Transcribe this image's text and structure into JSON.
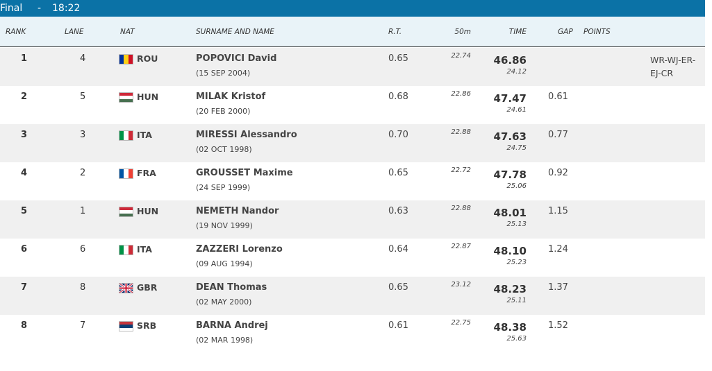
{
  "header": {
    "title": "Final",
    "separator": "-",
    "time": "18:22"
  },
  "columns": {
    "rank": "RANK",
    "lane": "LANE",
    "nat": "NAT",
    "name": "SURNAME AND NAME",
    "rt": "R.T.",
    "split": "50m",
    "time": "TIME",
    "gap": "GAP",
    "points": "POINTS"
  },
  "rows": [
    {
      "rank": 1,
      "lane": 4,
      "nat": "ROU",
      "name": "POPOVICI David",
      "dob": "(15 SEP 2004)",
      "rt": "0.65",
      "split": "22.74",
      "time": "46.86",
      "second": "24.12",
      "record": "WR-WJ-ER-EJ-CR"
    },
    {
      "rank": 2,
      "lane": 5,
      "nat": "HUN",
      "name": "MILAK Kristof",
      "dob": "(20 FEB 2000)",
      "rt": "0.68",
      "split": "22.86",
      "time": "47.47",
      "second": "24.61",
      "gap": "0.61"
    },
    {
      "rank": 3,
      "lane": 3,
      "nat": "ITA",
      "name": "MIRESSI Alessandro",
      "dob": "(02 OCT 1998)",
      "rt": "0.70",
      "split": "22.88",
      "time": "47.63",
      "second": "24.75",
      "gap": "0.77"
    },
    {
      "rank": 4,
      "lane": 2,
      "nat": "FRA",
      "name": "GROUSSET Maxime",
      "dob": "(24 SEP 1999)",
      "rt": "0.65",
      "split": "22.72",
      "time": "47.78",
      "second": "25.06",
      "gap": "0.92"
    },
    {
      "rank": 5,
      "lane": 1,
      "nat": "HUN",
      "name": "NEMETH Nandor",
      "dob": "(19 NOV 1999)",
      "rt": "0.63",
      "split": "22.88",
      "time": "48.01",
      "second": "25.13",
      "gap": "1.15"
    },
    {
      "rank": 6,
      "lane": 6,
      "nat": "ITA",
      "name": "ZAZZERI Lorenzo",
      "dob": "(09 AUG 1994)",
      "rt": "0.64",
      "split": "22.87",
      "time": "48.10",
      "second": "25.23",
      "gap": "1.24"
    },
    {
      "rank": 7,
      "lane": 8,
      "nat": "GBR",
      "name": "DEAN Thomas",
      "dob": "(02 MAY 2000)",
      "rt": "0.65",
      "split": "23.12",
      "time": "48.23",
      "second": "25.11",
      "gap": "1.37"
    },
    {
      "rank": 8,
      "lane": 7,
      "nat": "SRB",
      "name": "BARNA Andrej",
      "dob": "(02 MAR 1998)",
      "rt": "0.61",
      "split": "22.75",
      "time": "48.38",
      "second": "25.63",
      "gap": "1.52"
    }
  ]
}
